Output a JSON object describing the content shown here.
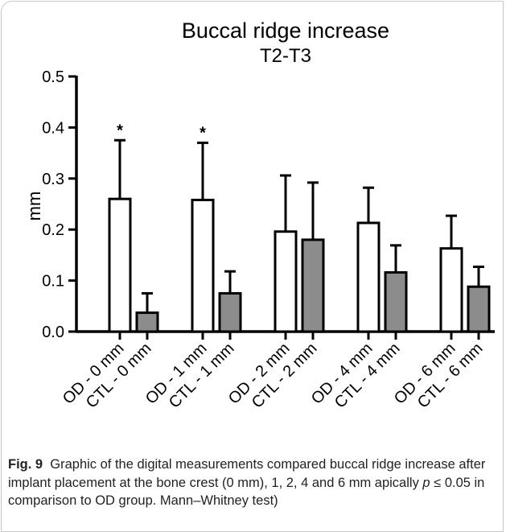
{
  "chart_data": {
    "type": "bar",
    "title": "Buccal ridge increase",
    "subtitle": "T2-T3",
    "ylabel": "mm",
    "categories": [
      "OD - 0 mm",
      "CTL - 0 mm",
      "OD - 1 mm",
      "CTL - 1 mm",
      "OD - 2 mm",
      "CTL - 2 mm",
      "OD - 4 mm",
      "CTL - 4 mm",
      "OD - 6 mm",
      "CTL - 6 mm"
    ],
    "values": [
      0.26,
      0.037,
      0.258,
      0.075,
      0.196,
      0.18,
      0.213,
      0.116,
      0.163,
      0.088
    ],
    "errors": [
      0.115,
      0.038,
      0.112,
      0.043,
      0.11,
      0.112,
      0.069,
      0.053,
      0.064,
      0.039
    ],
    "colors": [
      "#ffffff",
      "#8c8c8c",
      "#ffffff",
      "#8c8c8c",
      "#ffffff",
      "#8c8c8c",
      "#ffffff",
      "#8c8c8c",
      "#ffffff",
      "#8c8c8c"
    ],
    "annotations": [
      "*",
      "*"
    ],
    "ylim": [
      0,
      0.5
    ],
    "yticks": [
      {
        "value": 0,
        "label": "0.0"
      },
      0.1,
      0.2,
      0.3,
      0.4,
      0.5
    ]
  },
  "caption": {
    "label": "Fig. 9",
    "text": "Graphic of the digital measurements compared buccal ridge increase after implant placement at the bone crest (0 mm), 1, 2, 4 and 6 mm apically ",
    "italic": "p",
    "rest": " ≤ 0.05 in comparison to OD group. Mann–Whitney test)"
  }
}
